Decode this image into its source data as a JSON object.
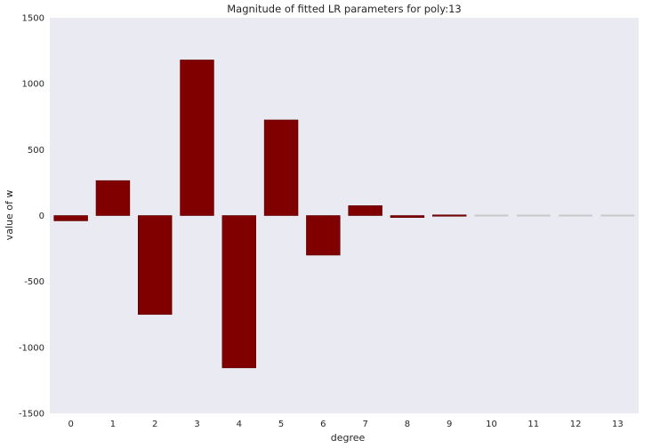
{
  "chart_data": {
    "type": "bar",
    "title": "Magnitude of fitted LR parameters for poly:13",
    "xlabel": "degree",
    "ylabel": "value of w",
    "categories": [
      "0",
      "1",
      "2",
      "3",
      "4",
      "5",
      "6",
      "7",
      "8",
      "9",
      "10",
      "11",
      "12",
      "13"
    ],
    "values": [
      -40,
      265,
      -750,
      1180,
      -1155,
      725,
      -300,
      75,
      -15,
      5,
      0,
      0,
      0,
      0
    ],
    "ylim": [
      -1500,
      1500
    ],
    "yticks": [
      -1500,
      -1000,
      -500,
      0,
      500,
      1000,
      1500
    ],
    "grid": false,
    "colors": {
      "bar": "#800000",
      "bar_edge": "#5a0000",
      "near_zero_bar": "#c8c8c8",
      "plot_background": "#eaeaf2"
    }
  }
}
